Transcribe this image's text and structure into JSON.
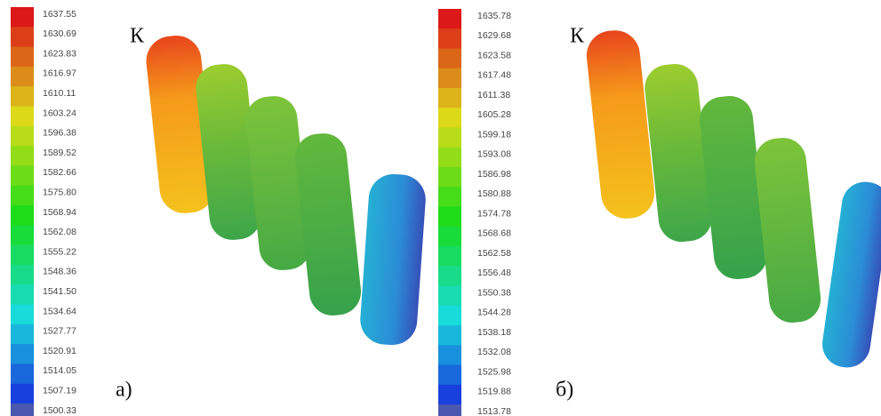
{
  "panels": [
    {
      "legend": [
        "1637.55",
        "1630.69",
        "1623.83",
        "1616.97",
        "1610.11",
        "1603.24",
        "1596.38",
        "1589.52",
        "1582.66",
        "1575.80",
        "1568.94",
        "1562.08",
        "1555.22",
        "1548.36",
        "1541.50",
        "1534.64",
        "1527.77",
        "1520.91",
        "1514.05",
        "1507.19",
        "1500.33"
      ],
      "unit": "К",
      "caption": "а)"
    },
    {
      "legend": [
        "1635.78",
        "1629.68",
        "1623.58",
        "1617.48",
        "1611.38",
        "1605.28",
        "1599.18",
        "1593.08",
        "1586.98",
        "1580.88",
        "1574.78",
        "1568.68",
        "1562.58",
        "1556.48",
        "1550.38",
        "1544.28",
        "1538.18",
        "1532.08",
        "1525.98",
        "1519.88",
        "1513.78"
      ],
      "unit": "К",
      "caption": "б)"
    }
  ]
}
